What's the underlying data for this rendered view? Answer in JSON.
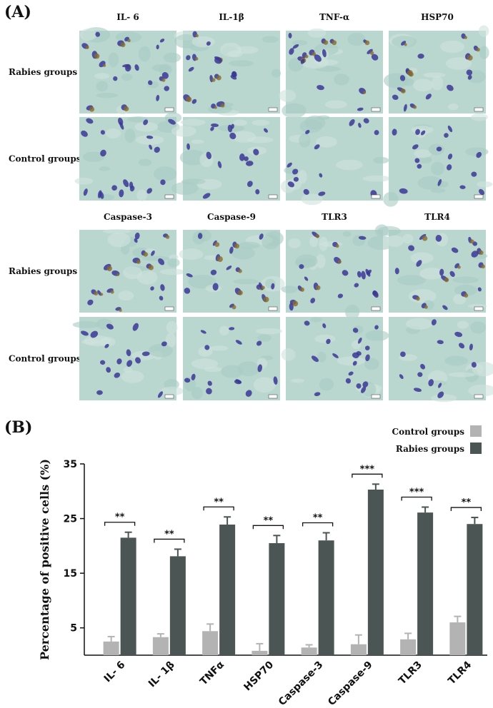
{
  "panel_a": {
    "label": "(A)",
    "rows": [
      "Rabies groups",
      "Control groups",
      "Rabies groups",
      "Control groups"
    ],
    "top_markers": [
      "IL- 6",
      "IL-1β",
      "TNF-α",
      "HSP70"
    ],
    "bottom_markers": [
      "Caspase-3",
      "Caspase-9",
      "TLR3",
      "TLR4"
    ],
    "tile_color": "#b9d6cf",
    "cell_color": "#3b3796"
  },
  "panel_b": {
    "label": "(B)"
  },
  "chart_data": {
    "type": "bar",
    "categories": [
      "IL- 6",
      "IL- 1β",
      "TNFα",
      "HSP70",
      "Caspase-3",
      "Caspase-9",
      "TLR3",
      "TLR4"
    ],
    "ylabel": "Percentage of positive cells (%)",
    "yticks": [
      5,
      15,
      25,
      35
    ],
    "ylim": [
      0,
      35
    ],
    "legend_position": "top-right",
    "series": [
      {
        "name": "Control groups",
        "color": "#b3b3b3",
        "values": [
          2.5,
          3.3,
          4.4,
          0.8,
          1.4,
          2.0,
          2.9,
          6.0
        ],
        "errors": [
          0.9,
          0.6,
          1.3,
          1.3,
          0.5,
          1.7,
          1.1,
          1.1
        ]
      },
      {
        "name": "Rabies groups",
        "color": "#4b5553",
        "values": [
          21.5,
          18.1,
          23.9,
          20.5,
          21.0,
          30.3,
          26.1,
          24.0
        ],
        "errors": [
          1.0,
          1.3,
          1.4,
          1.4,
          1.4,
          1.0,
          1.0,
          1.2
        ]
      }
    ],
    "significance": [
      "**",
      "**",
      "**",
      "**",
      "**",
      "***",
      "***",
      "**"
    ]
  }
}
